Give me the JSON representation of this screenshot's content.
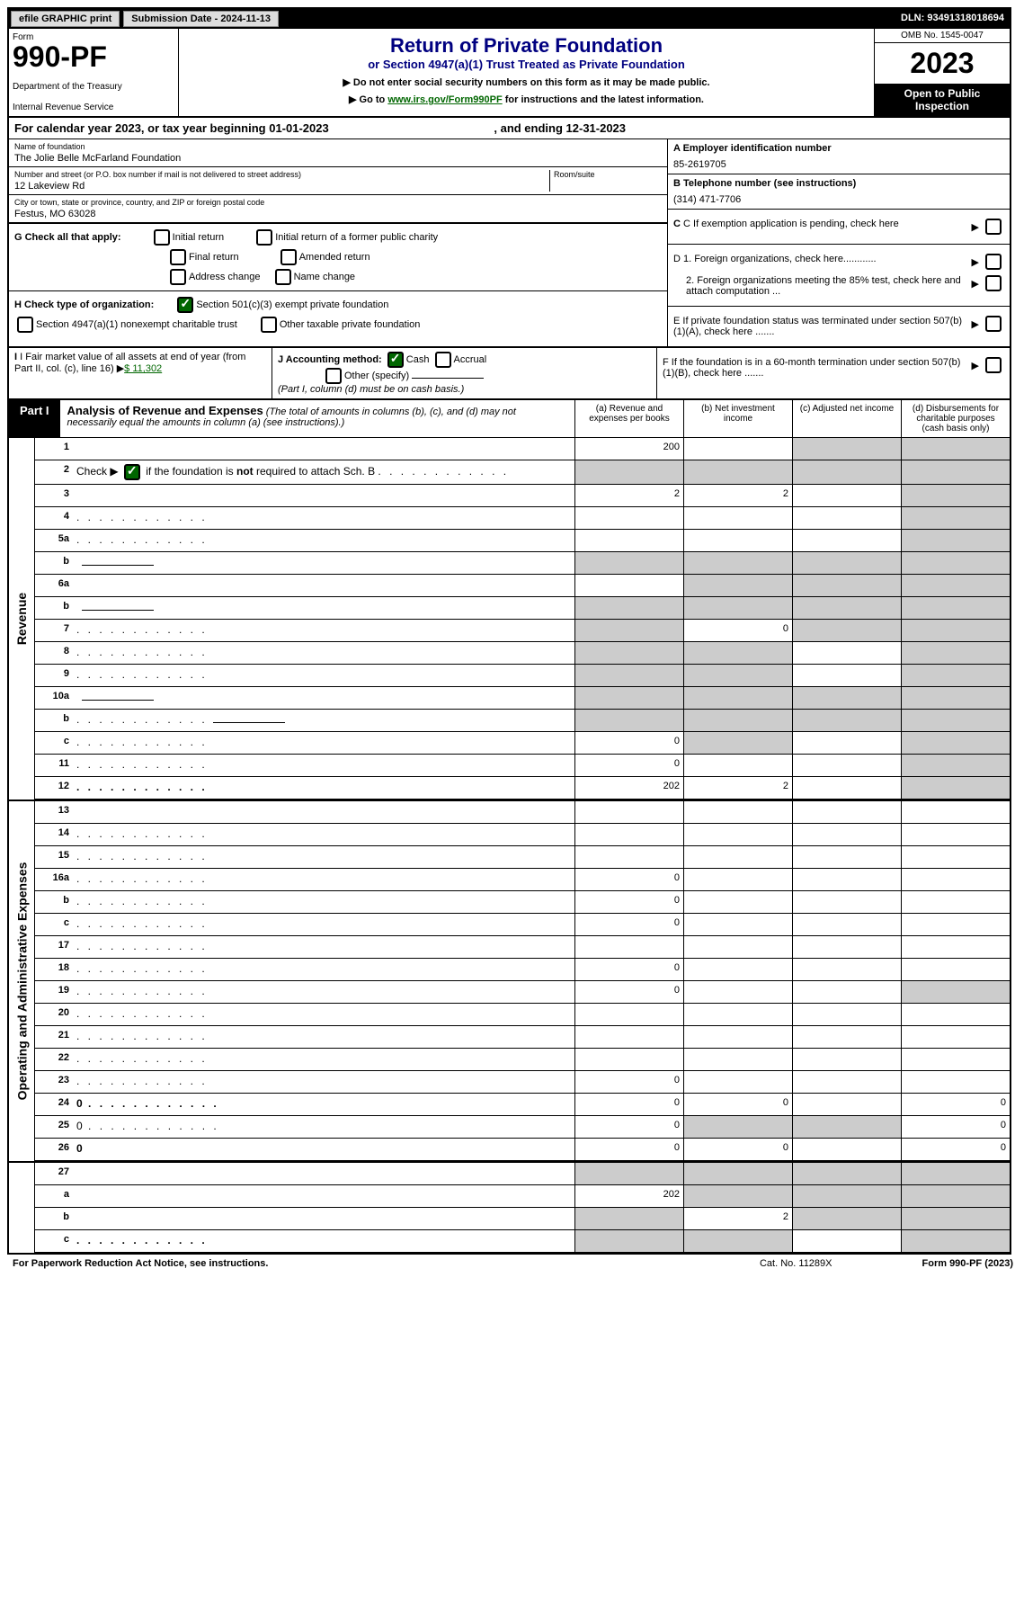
{
  "topbar": {
    "print": "efile GRAPHIC print",
    "submission": "Submission Date - 2024-11-13",
    "dln": "DLN: 93491318018694"
  },
  "header": {
    "form_label": "Form",
    "form_number": "990-PF",
    "dept": "Department of the Treasury",
    "irs": "Internal Revenue Service",
    "title": "Return of Private Foundation",
    "subtitle": "or Section 4947(a)(1) Trust Treated as Private Foundation",
    "instr1": "▶ Do not enter social security numbers on this form as it may be made public.",
    "instr2_pre": "▶ Go to ",
    "instr2_link": "www.irs.gov/Form990PF",
    "instr2_post": " for instructions and the latest information.",
    "omb": "OMB No. 1545-0047",
    "year": "2023",
    "open": "Open to Public Inspection"
  },
  "calyear": "For calendar year 2023, or tax year beginning 01-01-2023",
  "calyear_end": ", and ending 12-31-2023",
  "foundation": {
    "name_label": "Name of foundation",
    "name": "The Jolie Belle McFarland Foundation",
    "addr_label": "Number and street (or P.O. box number if mail is not delivered to street address)",
    "room_label": "Room/suite",
    "addr": "12 Lakeview Rd",
    "city_label": "City or town, state or province, country, and ZIP or foreign postal code",
    "city": "Festus, MO  63028"
  },
  "right_info": {
    "ein_label": "A Employer identification number",
    "ein": "85-2619705",
    "phone_label": "B Telephone number (see instructions)",
    "phone": "(314) 471-7706",
    "c": "C If exemption application is pending, check here",
    "d1": "D 1. Foreign organizations, check here............",
    "d2": "2. Foreign organizations meeting the 85% test, check here and attach computation ...",
    "e": "E  If private foundation status was terminated under section 507(b)(1)(A), check here .......",
    "f": "F  If the foundation is in a 60-month termination under section 507(b)(1)(B), check here ......."
  },
  "g": {
    "label": "G Check all that apply:",
    "initial": "Initial return",
    "initial_former": "Initial return of a former public charity",
    "final": "Final return",
    "amended": "Amended return",
    "address": "Address change",
    "name": "Name change"
  },
  "h": {
    "label": "H Check type of organization:",
    "501c3": "Section 501(c)(3) exempt private foundation",
    "4947": "Section 4947(a)(1) nonexempt charitable trust",
    "other": "Other taxable private foundation"
  },
  "i": {
    "label": "I Fair market value of all assets at end of year (from Part II, col. (c), line 16)",
    "value": "$  11,302"
  },
  "j": {
    "label": "J Accounting method:",
    "cash": "Cash",
    "accrual": "Accrual",
    "other": "Other (specify)",
    "note": "(Part I, column (d) must be on cash basis.)"
  },
  "part1": {
    "label": "Part I",
    "title": "Analysis of Revenue and Expenses",
    "note": "(The total of amounts in columns (b), (c), and (d) may not necessarily equal the amounts in column (a) (see instructions).)",
    "col_a": "(a) Revenue and expenses per books",
    "col_b": "(b) Net investment income",
    "col_c": "(c) Adjusted net income",
    "col_d": "(d) Disbursements for charitable purposes (cash basis only)"
  },
  "side_labels": {
    "revenue": "Revenue",
    "expenses": "Operating and Administrative Expenses"
  },
  "rows": [
    {
      "n": "1",
      "d": "",
      "a": "200",
      "b": "",
      "c": "",
      "shade_c": true,
      "shade_d": true
    },
    {
      "n": "2",
      "d": "",
      "a": "",
      "b": "",
      "c": "",
      "shade_a": true,
      "shade_b": true,
      "shade_c": true,
      "shade_d": true,
      "dots": true
    },
    {
      "n": "3",
      "d": "",
      "a": "2",
      "b": "2",
      "c": "",
      "shade_d": true
    },
    {
      "n": "4",
      "d": "",
      "a": "",
      "b": "",
      "c": "",
      "shade_d": true,
      "dots": true
    },
    {
      "n": "5a",
      "d": "",
      "a": "",
      "b": "",
      "c": "",
      "shade_d": true,
      "dots": true
    },
    {
      "n": "b",
      "d": "",
      "a": "",
      "b": "",
      "c": "",
      "shade_a": true,
      "shade_b": true,
      "shade_c": true,
      "shade_d": true,
      "underline": true
    },
    {
      "n": "6a",
      "d": "",
      "a": "",
      "b": "",
      "c": "",
      "shade_b": true,
      "shade_c": true,
      "shade_d": true
    },
    {
      "n": "b",
      "d": "",
      "a": "",
      "b": "",
      "c": "",
      "shade_a": true,
      "shade_b": true,
      "shade_c": true,
      "shade_d": true,
      "underline": true
    },
    {
      "n": "7",
      "d": "",
      "a": "",
      "b": "0",
      "c": "",
      "shade_a": true,
      "shade_c": true,
      "shade_d": true,
      "dots": true
    },
    {
      "n": "8",
      "d": "",
      "a": "",
      "b": "",
      "c": "",
      "shade_a": true,
      "shade_b": true,
      "shade_d": true,
      "dots": true
    },
    {
      "n": "9",
      "d": "",
      "a": "",
      "b": "",
      "c": "",
      "shade_a": true,
      "shade_b": true,
      "shade_d": true,
      "dots": true
    },
    {
      "n": "10a",
      "d": "",
      "a": "",
      "b": "",
      "c": "",
      "shade_a": true,
      "shade_b": true,
      "shade_c": true,
      "shade_d": true,
      "underline": true
    },
    {
      "n": "b",
      "d": "",
      "a": "",
      "b": "",
      "c": "",
      "shade_a": true,
      "shade_b": true,
      "shade_c": true,
      "shade_d": true,
      "dots": true,
      "underline": true
    },
    {
      "n": "c",
      "d": "",
      "a": "0",
      "b": "",
      "c": "",
      "shade_b": true,
      "shade_d": true,
      "dots": true
    },
    {
      "n": "11",
      "d": "",
      "a": "0",
      "b": "",
      "c": "",
      "shade_d": true,
      "dots": true
    },
    {
      "n": "12",
      "d": "",
      "a": "202",
      "b": "2",
      "c": "",
      "shade_d": true,
      "bold": true,
      "dots": true
    }
  ],
  "exp_rows": [
    {
      "n": "13",
      "d": "",
      "a": "",
      "b": "",
      "c": ""
    },
    {
      "n": "14",
      "d": "",
      "a": "",
      "b": "",
      "c": "",
      "dots": true
    },
    {
      "n": "15",
      "d": "",
      "a": "",
      "b": "",
      "c": "",
      "dots": true
    },
    {
      "n": "16a",
      "d": "",
      "a": "0",
      "b": "",
      "c": "",
      "dots": true
    },
    {
      "n": "b",
      "d": "",
      "a": "0",
      "b": "",
      "c": "",
      "dots": true
    },
    {
      "n": "c",
      "d": "",
      "a": "0",
      "b": "",
      "c": "",
      "dots": true
    },
    {
      "n": "17",
      "d": "",
      "a": "",
      "b": "",
      "c": "",
      "dots": true
    },
    {
      "n": "18",
      "d": "",
      "a": "0",
      "b": "",
      "c": "",
      "dots": true
    },
    {
      "n": "19",
      "d": "",
      "a": "0",
      "b": "",
      "c": "",
      "shade_d": true,
      "dots": true
    },
    {
      "n": "20",
      "d": "",
      "a": "",
      "b": "",
      "c": "",
      "dots": true
    },
    {
      "n": "21",
      "d": "",
      "a": "",
      "b": "",
      "c": "",
      "dots": true
    },
    {
      "n": "22",
      "d": "",
      "a": "",
      "b": "",
      "c": "",
      "dots": true
    },
    {
      "n": "23",
      "d": "",
      "a": "0",
      "b": "",
      "c": "",
      "dots": true
    },
    {
      "n": "24",
      "d": "0",
      "a": "0",
      "b": "0",
      "c": "",
      "bold": true,
      "dots": true
    },
    {
      "n": "25",
      "d": "0",
      "a": "0",
      "b": "",
      "c": "",
      "shade_b": true,
      "shade_c": true,
      "dots": true
    },
    {
      "n": "26",
      "d": "0",
      "a": "0",
      "b": "0",
      "c": "",
      "bold": true
    }
  ],
  "final_rows": [
    {
      "n": "27",
      "d": "",
      "a": "",
      "b": "",
      "c": "",
      "shade_a": true,
      "shade_b": true,
      "shade_c": true,
      "shade_d": true
    },
    {
      "n": "a",
      "d": "",
      "a": "202",
      "b": "",
      "c": "",
      "shade_b": true,
      "shade_c": true,
      "shade_d": true,
      "bold": true
    },
    {
      "n": "b",
      "d": "",
      "a": "",
      "b": "2",
      "c": "",
      "shade_a": true,
      "shade_c": true,
      "shade_d": true,
      "bold": true
    },
    {
      "n": "c",
      "d": "",
      "a": "",
      "b": "",
      "c": "",
      "shade_a": true,
      "shade_b": true,
      "shade_d": true,
      "bold": true,
      "dots": true
    }
  ],
  "footer": {
    "left": "For Paperwork Reduction Act Notice, see instructions.",
    "center": "Cat. No. 11289X",
    "right": "Form 990-PF (2023)"
  }
}
